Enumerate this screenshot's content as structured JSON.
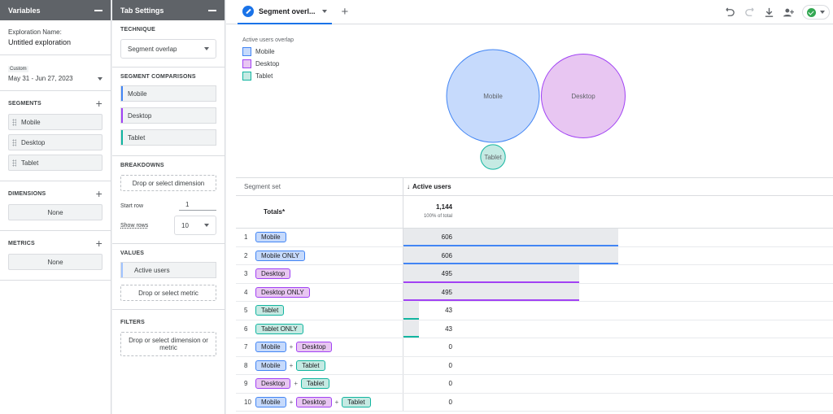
{
  "variables_panel": {
    "title": "Variables",
    "exploration_label": "Exploration Name:",
    "exploration_name": "Untitled exploration",
    "date_tag": "Custom",
    "date_range": "May 31 - Jun 27, 2023",
    "segments_title": "SEGMENTS",
    "segments": [
      {
        "label": "Mobile"
      },
      {
        "label": "Desktop"
      },
      {
        "label": "Tablet"
      }
    ],
    "dimensions_title": "DIMENSIONS",
    "dimensions_value": "None",
    "metrics_title": "METRICS",
    "metrics_value": "None"
  },
  "tab_settings": {
    "title": "Tab Settings",
    "technique_title": "TECHNIQUE",
    "technique_value": "Segment overlap",
    "segment_comparisons_title": "SEGMENT COMPARISONS",
    "segment_comparisons": [
      {
        "label": "Mobile",
        "color": "#4285f4"
      },
      {
        "label": "Desktop",
        "color": "#a142f4"
      },
      {
        "label": "Tablet",
        "color": "#12b5a0"
      }
    ],
    "breakdowns_title": "BREAKDOWNS",
    "breakdowns_placeholder": "Drop or select dimension",
    "start_row_label": "Start row",
    "start_row_value": "1",
    "show_rows_label": "Show rows",
    "show_rows_value": "10",
    "values_title": "VALUES",
    "values_item": "Active users",
    "values_placeholder": "Drop or select metric",
    "filters_title": "FILTERS",
    "filters_placeholder": "Drop or select dimension or metric"
  },
  "tab": {
    "label": "Segment overl..."
  },
  "toolbar_icons": [
    "undo-icon",
    "redo-icon",
    "download-icon",
    "share-user-icon",
    "check-status-icon"
  ],
  "viz": {
    "title": "Active users overlap",
    "legend": [
      {
        "label": "Mobile",
        "fill": "#c6dafc",
        "stroke": "#4285f4"
      },
      {
        "label": "Desktop",
        "fill": "#e8c6f2",
        "stroke": "#a142f4"
      },
      {
        "label": "Tablet",
        "fill": "#c5eae3",
        "stroke": "#12b5a0"
      }
    ],
    "circles": [
      {
        "label": "Mobile",
        "value": 606
      },
      {
        "label": "Desktop",
        "value": 495
      },
      {
        "label": "Tablet",
        "value": 43
      }
    ]
  },
  "table": {
    "col_segment": "Segment set",
    "col_metric": "Active users",
    "totals_label": "Totals*",
    "totals_value": "1,144",
    "totals_sub": "100% of total",
    "max": 1144,
    "rows": [
      {
        "idx": "1",
        "segs": [
          "Mobile"
        ],
        "value": 606,
        "color": "#4285f4"
      },
      {
        "idx": "2",
        "segs": [
          "Mobile ONLY"
        ],
        "value": 606,
        "color": "#4285f4"
      },
      {
        "idx": "3",
        "segs": [
          "Desktop"
        ],
        "value": 495,
        "color": "#a142f4"
      },
      {
        "idx": "4",
        "segs": [
          "Desktop ONLY"
        ],
        "value": 495,
        "color": "#a142f4"
      },
      {
        "idx": "5",
        "segs": [
          "Tablet"
        ],
        "value": 43,
        "color": "#12b5a0"
      },
      {
        "idx": "6",
        "segs": [
          "Tablet ONLY"
        ],
        "value": 43,
        "color": "#12b5a0"
      },
      {
        "idx": "7",
        "segs": [
          "Mobile",
          "Desktop"
        ],
        "value": 0,
        "color": "#4285f4"
      },
      {
        "idx": "8",
        "segs": [
          "Mobile",
          "Tablet"
        ],
        "value": 0,
        "color": "#4285f4"
      },
      {
        "idx": "9",
        "segs": [
          "Desktop",
          "Tablet"
        ],
        "value": 0,
        "color": "#a142f4"
      },
      {
        "idx": "10",
        "segs": [
          "Mobile",
          "Desktop",
          "Tablet"
        ],
        "value": 0,
        "color": "#4285f4"
      }
    ]
  },
  "pill_colors": {
    "Mobile": {
      "fill": "#c6dafc",
      "stroke": "#4285f4"
    },
    "Desktop": {
      "fill": "#e8c6f2",
      "stroke": "#a142f4"
    },
    "Tablet": {
      "fill": "#c5eae3",
      "stroke": "#12b5a0"
    }
  }
}
